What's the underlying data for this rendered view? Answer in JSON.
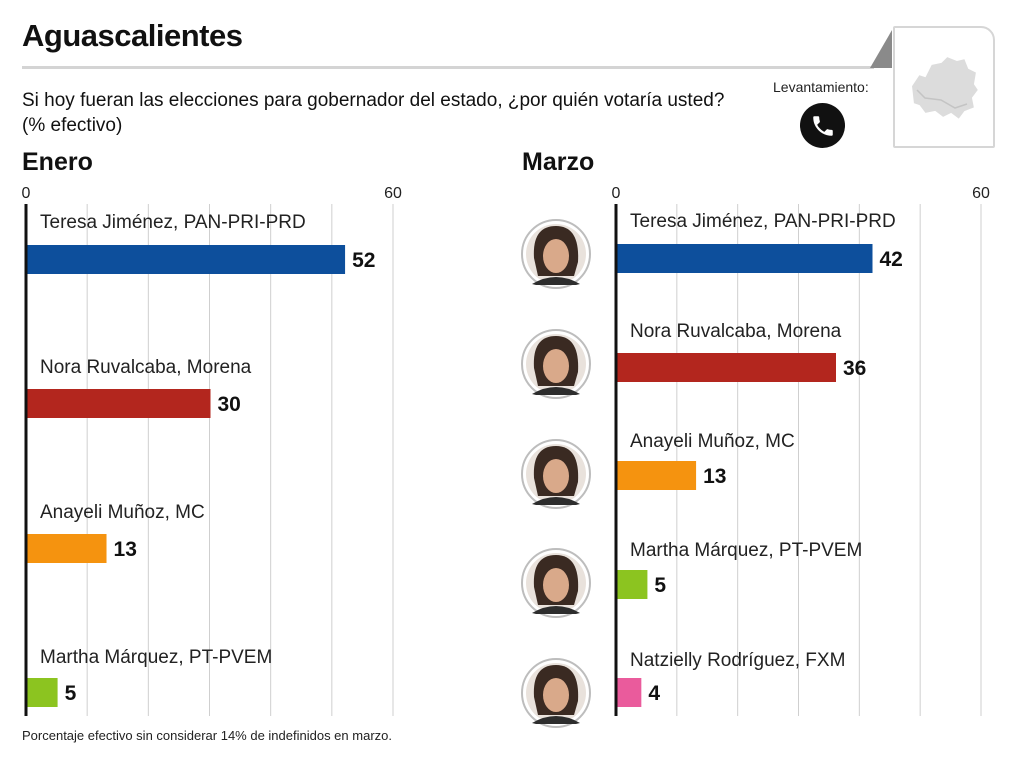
{
  "header": {
    "title": "Aguascalientes",
    "question": "Si hoy fueran las elecciones para gobernador del estado, ¿por quién votaría usted? (% efectivo)",
    "survey_label": "Levantamiento:",
    "survey_icon": "phone-icon",
    "map_icon": "state-map-icon"
  },
  "footnote": "Porcentaje efectivo sin considerar 14% de indefinidos en marzo.",
  "colors": {
    "Teresa Jiménez, PAN-PRI-PRD": "#0d4f9c",
    "Nora Ruvalcaba, Morena": "#b3261e",
    "Anayeli Muñoz, MC": "#f5930f",
    "Martha Márquez, PT-PVEM": "#8cc420",
    "Natzielly Rodríguez, FXM": "#ea5b9c"
  },
  "chart_data": [
    {
      "type": "bar",
      "title": "Enero",
      "categories": [
        "Teresa Jiménez, PAN-PRI-PRD",
        "Nora Ruvalcaba, Morena",
        "Anayeli Muñoz, MC",
        "Martha Márquez, PT-PVEM"
      ],
      "values": [
        52,
        30,
        13,
        5
      ],
      "xlim": [
        0,
        60
      ],
      "tick_labels": [
        "0",
        "60"
      ],
      "grid": true
    },
    {
      "type": "bar",
      "title": "Marzo",
      "categories": [
        "Teresa Jiménez, PAN-PRI-PRD",
        "Nora Ruvalcaba, Morena",
        "Anayeli Muñoz, MC",
        "Martha Márquez, PT-PVEM",
        "Natzielly Rodríguez, FXM"
      ],
      "values": [
        42,
        36,
        13,
        5,
        4
      ],
      "xlim": [
        0,
        60
      ],
      "tick_labels": [
        "0",
        "60"
      ],
      "grid": true,
      "photos": true
    }
  ]
}
